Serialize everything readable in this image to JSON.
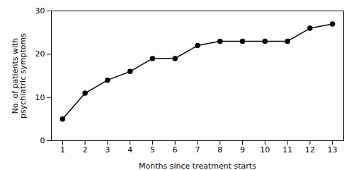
{
  "chart_data": {
    "type": "line",
    "x": [
      1,
      2,
      3,
      4,
      5,
      6,
      7,
      8,
      9,
      10,
      11,
      12,
      13
    ],
    "values": [
      5,
      11,
      14,
      16,
      19,
      19,
      22,
      23,
      23,
      23,
      23,
      26,
      27
    ],
    "xlabel": "Months since treatment starts",
    "ylabel": "No. of patients with\npsychiatric symptoms",
    "xlim": [
      0.5,
      13.5
    ],
    "xticks": [
      1,
      2,
      3,
      4,
      5,
      6,
      7,
      8,
      9,
      10,
      11,
      12,
      13
    ],
    "ylim": [
      0,
      30
    ],
    "yticks": [
      0,
      10,
      20,
      30
    ],
    "color": "#000000",
    "marker": "o",
    "grid": false
  }
}
